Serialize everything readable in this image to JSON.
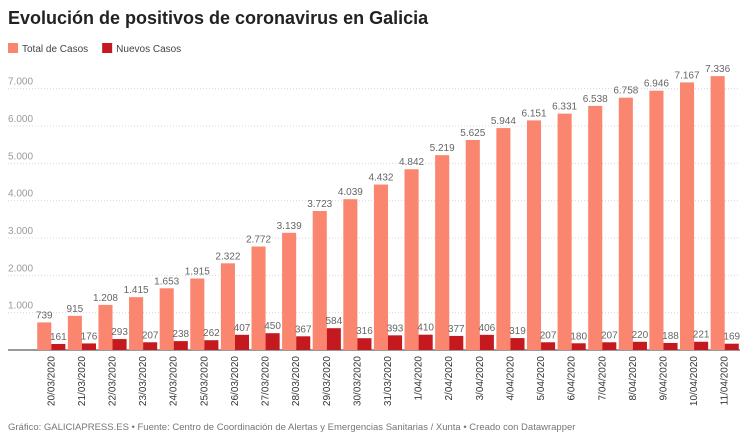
{
  "chart_data": {
    "type": "bar",
    "title": "Evolución de positivos de coronavirus en Galicia",
    "source": "Gráfico: GALICIAPRESS.ES • Fuente: Centro de Coordinación de Alertas y Emergencias Sanitarias / Xunta • Creado con Datawrapper",
    "categories": [
      "20/03/2020",
      "21/03/2020",
      "22/03/2020",
      "23/03/2020",
      "24/03/2020",
      "25/03/2020",
      "26/03/2020",
      "27/03/2020",
      "28/03/2020",
      "29/03/2020",
      "30/03/2020",
      "31/03/2020",
      "1/04/2020",
      "2/04/2020",
      "3/04/2020",
      "4/04/2020",
      "5/04/2020",
      "6/04/2020",
      "7/04/2020",
      "8/04/2020",
      "9/04/2020",
      "10/04/2020",
      "11/04/2020"
    ],
    "series": [
      {
        "name": "Total de Casos",
        "color": "#fa8670",
        "values": [
          739,
          915,
          1208,
          1415,
          1653,
          1915,
          2322,
          2772,
          3139,
          3723,
          4039,
          4432,
          4842,
          5219,
          5625,
          5944,
          6151,
          6331,
          6538,
          6758,
          6946,
          7167,
          7336
        ],
        "value_labels": [
          "739",
          "915",
          "1.208",
          "1.415",
          "1.653",
          "1.915",
          "2.322",
          "2.772",
          "3.139",
          "3.723",
          "4.039",
          "4.432",
          "4.842",
          "5.219",
          "5.625",
          "5.944",
          "6.151",
          "6.331",
          "6.538",
          "6.758",
          "6.946",
          "7.167",
          "7.336"
        ]
      },
      {
        "name": "Nuevos Casos",
        "color": "#c41a1f",
        "values": [
          161,
          176,
          293,
          207,
          238,
          262,
          407,
          450,
          367,
          584,
          316,
          393,
          410,
          377,
          406,
          319,
          207,
          180,
          207,
          220,
          188,
          221,
          169
        ]
      }
    ],
    "ylim": [
      0,
      7500
    ],
    "yticks": [
      {
        "value": 1000,
        "label": "1.000"
      },
      {
        "value": 2000,
        "label": "2.000"
      },
      {
        "value": 3000,
        "label": "3.000"
      },
      {
        "value": 4000,
        "label": "4.000"
      },
      {
        "value": 5000,
        "label": "5.000"
      },
      {
        "value": 6000,
        "label": "6.000"
      },
      {
        "value": 7000,
        "label": "7.000"
      }
    ],
    "grid": true
  }
}
